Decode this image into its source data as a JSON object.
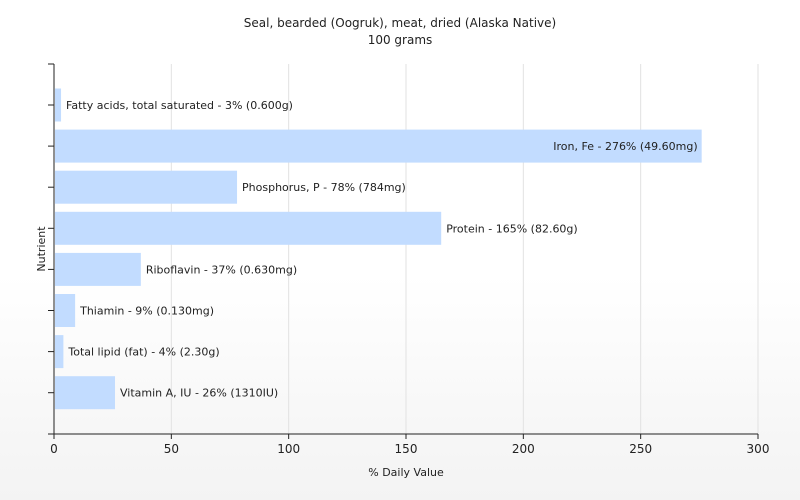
{
  "chart_data": {
    "type": "bar",
    "orientation": "horizontal",
    "title": "Seal, bearded (Oogruk), meat, dried (Alaska Native)",
    "subtitle": "100 grams",
    "xlabel": "% Daily Value",
    "ylabel": "Nutrient",
    "xlim": [
      0,
      300
    ],
    "xticks": [
      "0",
      "50",
      "100",
      "150",
      "200",
      "250",
      "300"
    ],
    "grid": true,
    "bar_color": "#c2dcff",
    "categories": [
      "Fatty acids, total saturated",
      "Iron, Fe",
      "Phosphorus, P",
      "Protein",
      "Riboflavin",
      "Thiamin",
      "Total lipid (fat)",
      "Vitamin A, IU"
    ],
    "values": [
      3,
      276,
      78,
      165,
      37,
      9,
      4,
      26
    ],
    "labels": [
      "Fatty acids, total saturated - 3% (0.600g)",
      "Iron, Fe - 276% (49.60mg)",
      "Phosphorus, P - 78% (784mg)",
      "Protein - 165% (82.60g)",
      "Riboflavin - 37% (0.630mg)",
      "Thiamin - 9% (0.130mg)",
      "Total lipid (fat) - 4% (2.30g)",
      "Vitamin A, IU - 26% (1310IU)"
    ]
  }
}
